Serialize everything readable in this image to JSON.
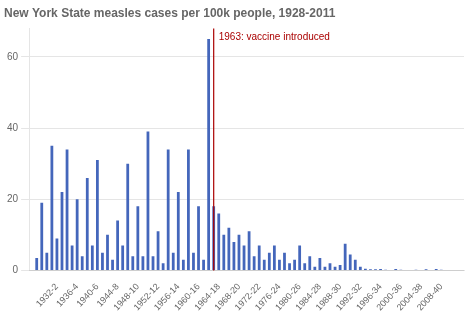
{
  "chart_data": {
    "type": "bar",
    "title": "New York State measles cases per 100k people, 1928-2011",
    "x": [
      1928,
      1929,
      1930,
      1931,
      1932,
      1933,
      1934,
      1935,
      1936,
      1937,
      1938,
      1939,
      1940,
      1941,
      1942,
      1943,
      1944,
      1945,
      1946,
      1947,
      1948,
      1949,
      1950,
      1951,
      1952,
      1953,
      1954,
      1955,
      1956,
      1957,
      1958,
      1959,
      1960,
      1961,
      1962,
      1963,
      1964,
      1965,
      1966,
      1967,
      1968,
      1969,
      1970,
      1971,
      1972,
      1973,
      1974,
      1975,
      1976,
      1977,
      1978,
      1979,
      1980,
      1981,
      1982,
      1983,
      1984,
      1985,
      1986,
      1987,
      1988,
      1989,
      1990,
      1991,
      1992,
      1993,
      1994,
      1995,
      1996,
      1997,
      1998,
      1999,
      2000,
      2001,
      2002,
      2003,
      2004,
      2005,
      2006,
      2007,
      2008,
      2009,
      2010,
      2011
    ],
    "values": [
      3.5,
      19.0,
      5.0,
      35.0,
      9.0,
      22.0,
      34.0,
      7.0,
      20.0,
      4.0,
      26.0,
      7.0,
      31.0,
      5.0,
      10.0,
      3.0,
      14.0,
      7.0,
      30.0,
      4.0,
      18.0,
      4.0,
      39.0,
      4.0,
      11.0,
      2.0,
      34.0,
      5.0,
      22.0,
      3.0,
      34.0,
      5.0,
      18.0,
      3.0,
      65.0,
      18.0,
      16.0,
      10.0,
      12.0,
      8.0,
      10.0,
      7.0,
      11.0,
      4.0,
      7.0,
      3.0,
      5.0,
      7.0,
      3.0,
      5.0,
      2.0,
      3.0,
      7.0,
      2.0,
      4.0,
      1.0,
      3.5,
      1.0,
      2.0,
      1.0,
      1.5,
      7.5,
      4.5,
      3.0,
      1.0,
      0.5,
      0.3,
      0.3,
      0.4,
      0.2,
      0.1,
      0.4,
      0.2,
      0.1,
      0.1,
      0.2,
      0.1,
      0.3,
      0.1,
      0.4,
      0.2,
      0.1,
      0.1,
      0.1
    ],
    "color": "#4466bb",
    "xlim": [
      1926.5,
      2012.5
    ],
    "xticks": [
      {
        "value": 1932,
        "label": "1932-2"
      },
      {
        "value": 1936,
        "label": "1936-4"
      },
      {
        "value": 1940,
        "label": "1940-6"
      },
      {
        "value": 1944,
        "label": "1944-8"
      },
      {
        "value": 1948,
        "label": "1948-10"
      },
      {
        "value": 1952,
        "label": "1952-12"
      },
      {
        "value": 1956,
        "label": "1956-14"
      },
      {
        "value": 1960,
        "label": "1960-16"
      },
      {
        "value": 1964,
        "label": "1964-18"
      },
      {
        "value": 1968,
        "label": "1968-20"
      },
      {
        "value": 1972,
        "label": "1972-22"
      },
      {
        "value": 1976,
        "label": "1976-24"
      },
      {
        "value": 1980,
        "label": "1980-26"
      },
      {
        "value": 1984,
        "label": "1984-28"
      },
      {
        "value": 1988,
        "label": "1988-30"
      },
      {
        "value": 1992,
        "label": "1992-32"
      },
      {
        "value": 1996,
        "label": "1996-34"
      },
      {
        "value": 2000,
        "label": "2000-36"
      },
      {
        "value": 2004,
        "label": "2004-38"
      },
      {
        "value": 2008,
        "label": "2008-40"
      }
    ],
    "ylim": [
      0,
      68
    ],
    "yticks": [
      0,
      20,
      40,
      60
    ],
    "grid": "y",
    "annotations": [
      {
        "text": "1963: vaccine introduced",
        "x": 1963,
        "color": "#aa0000"
      }
    ]
  }
}
